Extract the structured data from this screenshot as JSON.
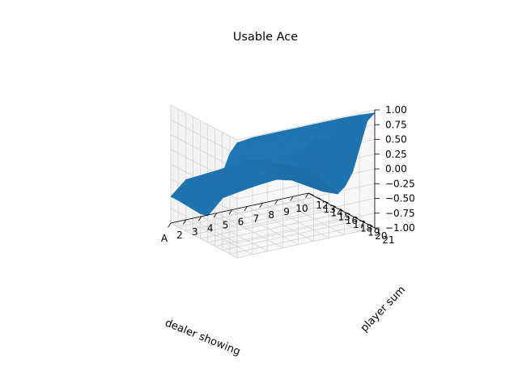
{
  "chart_data": {
    "type": "surface",
    "title": "Usable Ace",
    "xlabel": "dealer showing",
    "ylabel": "player sum",
    "zlabel": "",
    "x_categories": [
      "A",
      "2",
      "3",
      "4",
      "5",
      "6",
      "7",
      "8",
      "9",
      "10"
    ],
    "y_categories": [
      "12",
      "13",
      "14",
      "15",
      "16",
      "17",
      "18",
      "19",
      "20",
      "21"
    ],
    "z_tick_labels": [
      "−1.00",
      "−0.75",
      "−0.50",
      "−0.25",
      "0.00",
      "0.25",
      "0.50",
      "0.75",
      "1.00"
    ],
    "z_ticks": [
      -1.0,
      -0.75,
      -0.5,
      -0.25,
      0.0,
      0.25,
      0.5,
      0.75,
      1.0
    ],
    "zlim": [
      -1.0,
      1.0
    ],
    "grid": true,
    "surface_color": "#1f77b4",
    "z_by_player_sum": [
      [
        -0.55,
        -0.32,
        -0.3,
        -0.28,
        -0.25,
        -0.23,
        -0.27,
        -0.38,
        -0.5,
        -0.6
      ],
      [
        -0.55,
        -0.33,
        -0.31,
        -0.29,
        -0.26,
        -0.24,
        -0.28,
        -0.4,
        -0.52,
        -0.62
      ],
      [
        -0.56,
        -0.35,
        -0.32,
        -0.3,
        -0.27,
        -0.25,
        -0.3,
        -0.42,
        -0.55,
        -0.65
      ],
      [
        -0.57,
        -0.36,
        -0.33,
        -0.31,
        -0.28,
        -0.26,
        -0.32,
        -0.45,
        -0.58,
        -0.68
      ],
      [
        -0.58,
        -0.38,
        -0.35,
        -0.33,
        -0.3,
        -0.28,
        -0.35,
        -0.5,
        -0.65,
        -0.75
      ],
      [
        -0.55,
        -0.3,
        -0.26,
        -0.22,
        -0.18,
        -0.15,
        -0.33,
        -0.42,
        -0.5,
        -0.55
      ],
      [
        -0.2,
        0.1,
        0.14,
        0.17,
        0.2,
        0.25,
        0.35,
        0.05,
        -0.15,
        -0.25
      ],
      [
        0.3,
        0.5,
        0.52,
        0.55,
        0.57,
        0.6,
        0.58,
        0.5,
        0.4,
        0.25
      ],
      [
        0.7,
        0.8,
        0.82,
        0.83,
        0.84,
        0.85,
        0.86,
        0.85,
        0.82,
        0.75
      ],
      [
        0.95,
        0.98,
        0.98,
        0.98,
        0.98,
        0.98,
        0.98,
        0.98,
        0.97,
        0.95
      ]
    ]
  }
}
